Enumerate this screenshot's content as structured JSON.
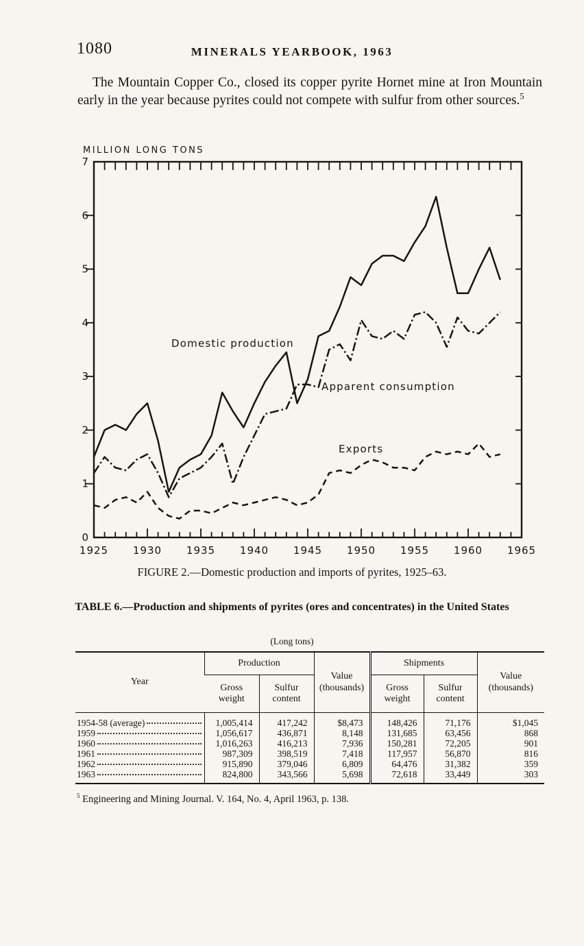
{
  "page": {
    "number": "1080",
    "running_head": "MINERALS YEARBOOK, 1963",
    "paragraph": "The Mountain Copper Co., closed its copper pyrite Hornet mine at Iron Mountain early in the year because pyrites could not compete with sulfur from other sources.",
    "paragraph_footnote_ref": "5"
  },
  "figure": {
    "axis_title": "MILLION LONG TONS",
    "caption": "FIGURE 2.—Domestic production and imports of pyrites, 1925–63.",
    "series_labels": {
      "domestic": "Domestic production",
      "consumption": "Apparent consumption",
      "exports": "Exports"
    }
  },
  "chart_data": {
    "type": "line",
    "title": "",
    "xlabel": "",
    "ylabel": "MILLION LONG TONS",
    "xlim": [
      1925,
      1965
    ],
    "ylim": [
      0,
      7
    ],
    "x_ticks": [
      1925,
      1930,
      1935,
      1940,
      1945,
      1950,
      1955,
      1960,
      1965
    ],
    "y_ticks": [
      0,
      1,
      2,
      3,
      4,
      5,
      6,
      7
    ],
    "grid": false,
    "legend_position": "inline-labels",
    "x": [
      1925,
      1926,
      1927,
      1928,
      1929,
      1930,
      1931,
      1932,
      1933,
      1934,
      1935,
      1936,
      1937,
      1938,
      1939,
      1940,
      1941,
      1942,
      1943,
      1944,
      1945,
      1946,
      1947,
      1948,
      1949,
      1950,
      1951,
      1952,
      1953,
      1954,
      1955,
      1956,
      1957,
      1958,
      1959,
      1960,
      1961,
      1962,
      1963
    ],
    "series": [
      {
        "name": "Domestic production",
        "line_style": "solid",
        "values": [
          1.5,
          2.0,
          2.1,
          2.0,
          2.3,
          2.5,
          1.8,
          0.85,
          1.3,
          1.45,
          1.55,
          1.9,
          2.7,
          2.35,
          2.05,
          2.5,
          2.9,
          3.2,
          3.45,
          2.5,
          2.95,
          3.75,
          3.85,
          4.3,
          4.85,
          4.7,
          5.1,
          5.25,
          5.25,
          5.15,
          5.5,
          5.8,
          6.35,
          5.4,
          4.55,
          4.55,
          5.0,
          5.4,
          4.8
        ]
      },
      {
        "name": "Apparent consumption",
        "line_style": "dashdot",
        "values": [
          1.2,
          1.5,
          1.3,
          1.25,
          1.45,
          1.55,
          1.2,
          0.75,
          1.1,
          1.2,
          1.3,
          1.5,
          1.75,
          1.0,
          1.5,
          1.9,
          2.3,
          2.35,
          2.4,
          2.85,
          2.85,
          2.8,
          3.5,
          3.6,
          3.3,
          4.05,
          3.75,
          3.7,
          3.85,
          3.7,
          4.15,
          4.2,
          4.0,
          3.55,
          4.1,
          3.85,
          3.8,
          4.0,
          4.2
        ]
      },
      {
        "name": "Exports",
        "line_style": "dashed",
        "values": [
          0.6,
          0.55,
          0.7,
          0.75,
          0.65,
          0.85,
          0.55,
          0.4,
          0.35,
          0.5,
          0.5,
          0.45,
          0.55,
          0.65,
          0.6,
          0.65,
          0.7,
          0.75,
          0.7,
          0.6,
          0.65,
          0.8,
          1.2,
          1.25,
          1.2,
          1.35,
          1.45,
          1.4,
          1.3,
          1.3,
          1.25,
          1.5,
          1.6,
          1.55,
          1.6,
          1.55,
          1.75,
          1.5,
          1.55
        ]
      }
    ]
  },
  "table": {
    "title": "TABLE 6.—Production and shipments of pyrites (ores and concentrates) in the United States",
    "subtitle": "(Long tons)",
    "headers": {
      "year": "Year",
      "production_group": "Production",
      "shipments_group": "Shipments",
      "gross_weight": "Gross\nweight",
      "sulfur_content": "Sulfur\ncontent",
      "value_thousands": "Value\n(thousands)"
    },
    "rows": [
      {
        "year": "1954-58 (average)",
        "p_gross": "1,005,414",
        "p_sulfur": "417,242",
        "p_value": "$8,473",
        "s_gross": "148,426",
        "s_sulfur": "71,176",
        "s_value": "$1,045"
      },
      {
        "year": "1959",
        "p_gross": "1,056,617",
        "p_sulfur": "436,871",
        "p_value": "8,148",
        "s_gross": "131,685",
        "s_sulfur": "63,456",
        "s_value": "868"
      },
      {
        "year": "1960",
        "p_gross": "1,016,263",
        "p_sulfur": "416,213",
        "p_value": "7,936",
        "s_gross": "150,281",
        "s_sulfur": "72,205",
        "s_value": "901"
      },
      {
        "year": "1961",
        "p_gross": "987,309",
        "p_sulfur": "398,519",
        "p_value": "7,418",
        "s_gross": "117,957",
        "s_sulfur": "56,870",
        "s_value": "816"
      },
      {
        "year": "1962",
        "p_gross": "915,890",
        "p_sulfur": "379,046",
        "p_value": "6,809",
        "s_gross": "64,476",
        "s_sulfur": "31,382",
        "s_value": "359"
      },
      {
        "year": "1963",
        "p_gross": "824,800",
        "p_sulfur": "343,566",
        "p_value": "5,698",
        "s_gross": "72,618",
        "s_sulfur": "33,449",
        "s_value": "303"
      }
    ]
  },
  "footnote": {
    "marker": "5",
    "text": "Engineering and Mining Journal.  V. 164, No. 4, April 1963, p. 138."
  }
}
